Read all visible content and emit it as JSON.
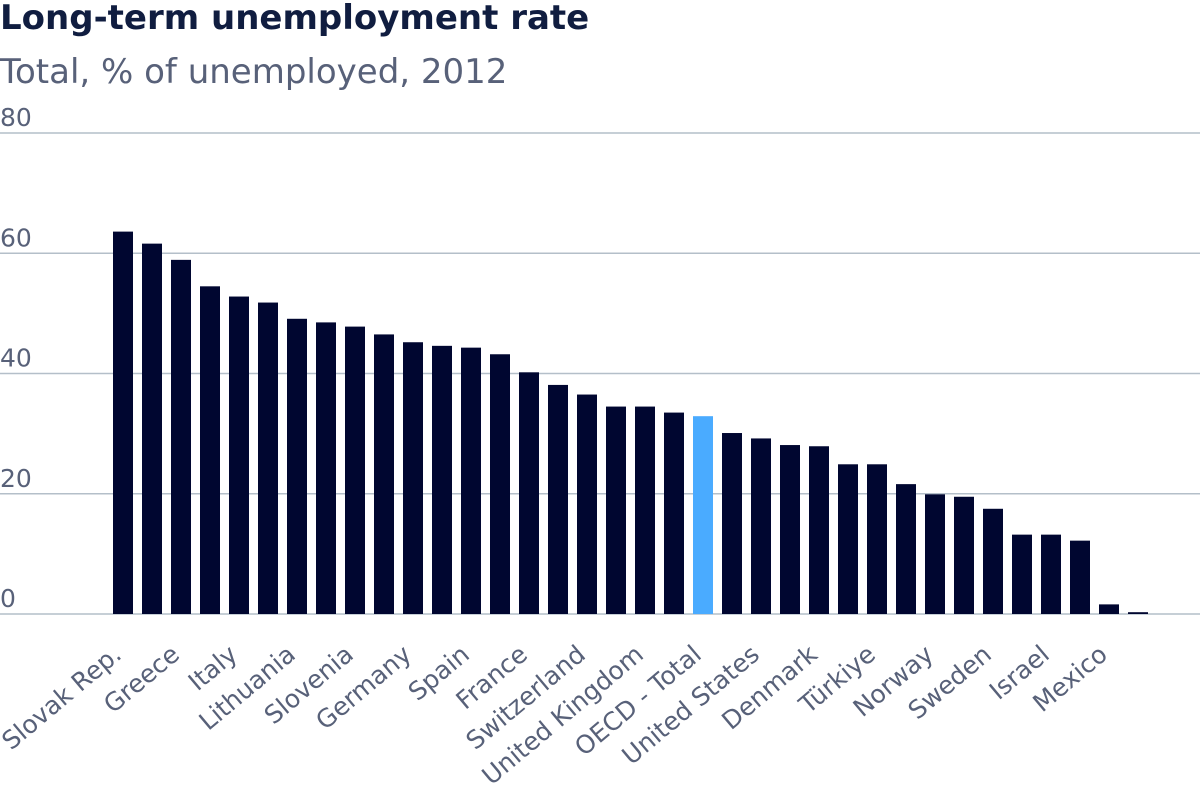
{
  "header": {
    "title": "Long-term unemployment rate",
    "subtitle": "Total, % of unemployed, 2012"
  },
  "colors": {
    "bar": "#000630",
    "highlight": "#4aabff"
  },
  "chart_data": {
    "type": "bar",
    "title": "Long-term unemployment rate",
    "subtitle": "Total, % of unemployed, 2012",
    "xlabel": "",
    "ylabel": "",
    "ylim": [
      0,
      80
    ],
    "yticks": [
      0,
      20,
      40,
      60,
      80
    ],
    "grid": true,
    "highlight_category": "OECD - Total",
    "categories": [
      "Slovak Rep.",
      "",
      "Greece",
      "",
      "Italy",
      "",
      "Lithuania",
      "",
      "Slovenia",
      "",
      "Germany",
      "",
      "Spain",
      "",
      "France",
      "",
      "Switzerland",
      "",
      "United Kingdom",
      "",
      "OECD - Total",
      "",
      "United States",
      "",
      "Denmark",
      "",
      "Türkiye",
      "",
      "Norway",
      "",
      "Sweden",
      "",
      "Israel",
      "",
      "Mexico",
      ""
    ],
    "values": [
      63.6,
      61.6,
      58.9,
      54.5,
      52.8,
      51.8,
      49.1,
      48.5,
      47.8,
      46.5,
      45.2,
      44.6,
      44.3,
      43.2,
      40.2,
      38.1,
      36.5,
      34.5,
      34.5,
      33.5,
      32.9,
      30.1,
      29.2,
      28.1,
      27.9,
      24.9,
      24.9,
      21.6,
      19.9,
      19.5,
      17.5,
      13.2,
      13.2,
      12.2,
      1.6,
      0.3
    ]
  }
}
